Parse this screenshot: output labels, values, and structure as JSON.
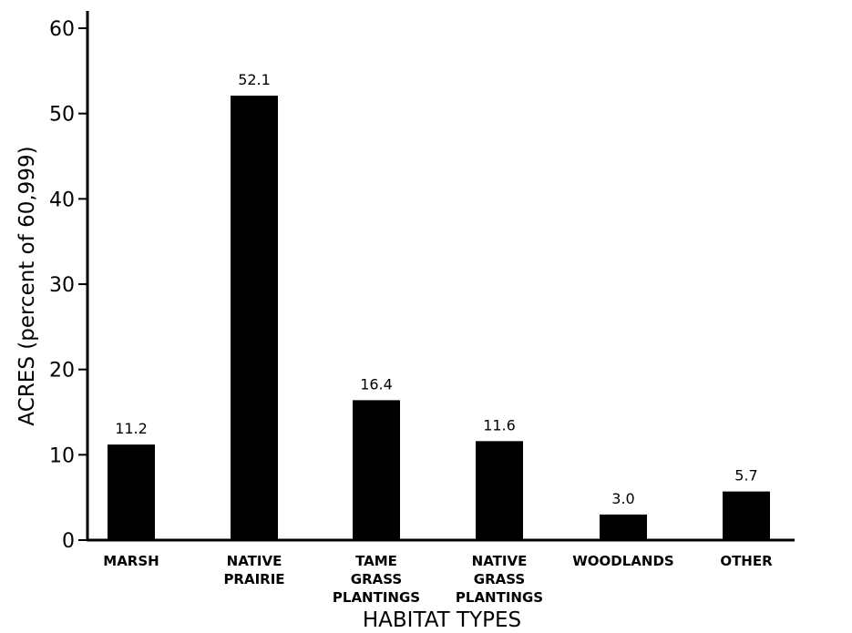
{
  "chart_data": {
    "type": "bar",
    "categories": [
      [
        "MARSH"
      ],
      [
        "NATIVE",
        "PRAIRIE"
      ],
      [
        "TAME",
        "GRASS",
        "PLANTINGS"
      ],
      [
        "NATIVE",
        "GRASS",
        "PLANTINGS"
      ],
      [
        "WOODLANDS"
      ],
      [
        "OTHER"
      ]
    ],
    "values": [
      11.2,
      52.1,
      16.4,
      11.6,
      3.0,
      5.7
    ],
    "value_labels": [
      "11.2",
      "52.1",
      "16.4",
      "11.6",
      "3.0",
      "5.7"
    ],
    "title": "",
    "xlabel": "HABITAT TYPES",
    "ylabel": "ACRES (percent of 60,999)",
    "ylim": [
      0,
      60
    ],
    "yticks": [
      0,
      10,
      20,
      30,
      40,
      50,
      60
    ],
    "grid": false,
    "bar_color": "#000000"
  }
}
